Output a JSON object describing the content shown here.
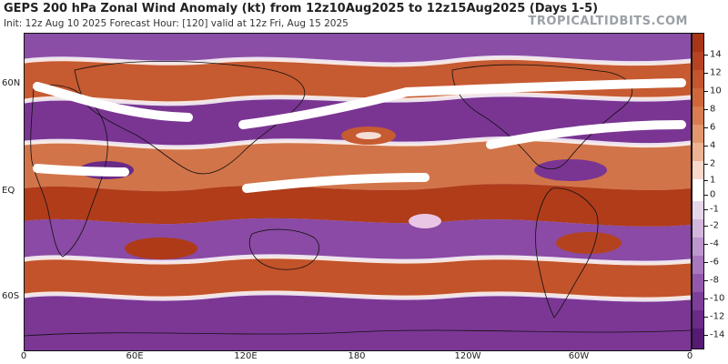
{
  "header": {
    "title": "GEPS 200 hPa Zonal Wind Anomaly (kt) from 12z10Aug2025 to 12z15Aug2025 (Days 1-5)",
    "subtitle": "Init: 12z Aug 10 2025   Forecast Hour: [120]   valid at 12z Fri, Aug 15 2025",
    "brand": "TROPICALTIDBITS.COM"
  },
  "axes": {
    "lat_labels": [
      "60N",
      "EQ",
      "60S"
    ],
    "lon_labels": [
      "0",
      "60E",
      "120E",
      "180",
      "120W",
      "60W",
      "0"
    ]
  },
  "colorbar": {
    "labels": [
      "14",
      "12",
      "10",
      "8",
      "6",
      "4",
      "2",
      "1",
      "0",
      "-1",
      "-2",
      "-4",
      "-6",
      "-8",
      "-10",
      "-12",
      "-14"
    ],
    "colors": [
      "#a83616",
      "#b74322",
      "#c4552d",
      "#cf673b",
      "#d97c52",
      "#e4966e",
      "#eeb395",
      "#f7d8c9",
      "#ffffff",
      "#e6d6ea",
      "#d2b6dc",
      "#bd96cd",
      "#a877bd",
      "#9358ac",
      "#7e3f9b",
      "#6a2a88",
      "#561a75"
    ]
  },
  "colors": {
    "positive_strong": "#b5401f",
    "positive_mid": "#d77a4f",
    "negative_strong": "#6e2b8a",
    "negative_mid": "#9a62b3",
    "annotation": "#ffffff"
  }
}
